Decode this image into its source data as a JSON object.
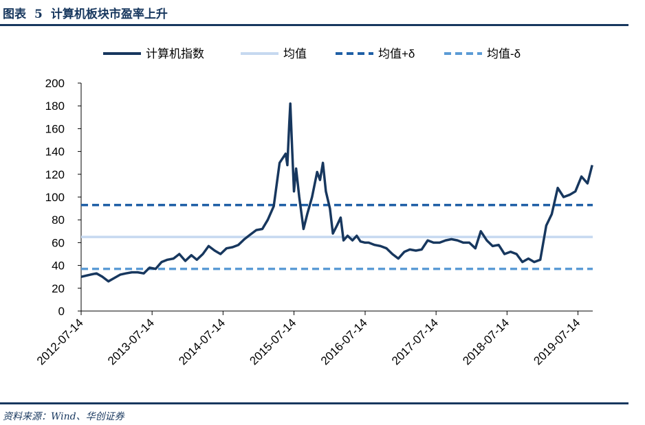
{
  "header": {
    "label": "图表",
    "number": "5",
    "title": "计算机板块市盈率上升"
  },
  "source": "资料来源：Wind、华创证券",
  "chart_data": {
    "type": "line",
    "x": [
      "2012-07-14",
      "2012-09-01",
      "2012-10-01",
      "2012-11-01",
      "2012-12-01",
      "2013-01-01",
      "2013-02-01",
      "2013-03-01",
      "2013-04-01",
      "2013-05-01",
      "2013-06-01",
      "2013-07-01",
      "2013-08-01",
      "2013-09-01",
      "2013-10-01",
      "2013-11-01",
      "2013-12-01",
      "2014-01-01",
      "2014-02-01",
      "2014-03-01",
      "2014-04-01",
      "2014-05-01",
      "2014-06-01",
      "2014-07-01",
      "2014-08-01",
      "2014-09-01",
      "2014-10-01",
      "2014-11-01",
      "2014-12-01",
      "2015-01-01",
      "2015-02-01",
      "2015-03-01",
      "2015-04-01",
      "2015-05-01",
      "2015-06-01",
      "2015-06-10",
      "2015-06-20",
      "2015-06-25",
      "2015-07-05",
      "2015-07-14",
      "2015-07-25",
      "2015-08-10",
      "2015-09-01",
      "2015-09-20",
      "2015-10-15",
      "2015-11-10",
      "2015-11-25",
      "2015-12-10",
      "2015-12-25",
      "2016-01-15",
      "2016-01-30",
      "2016-02-20",
      "2016-03-10",
      "2016-03-25",
      "2016-04-15",
      "2016-05-10",
      "2016-06-01",
      "2016-06-20",
      "2016-07-14",
      "2016-08-01",
      "2016-09-01",
      "2016-10-01",
      "2016-11-01",
      "2016-12-01",
      "2017-01-01",
      "2017-02-01",
      "2017-03-01",
      "2017-04-01",
      "2017-05-01",
      "2017-06-01",
      "2017-07-01",
      "2017-08-01",
      "2017-09-01",
      "2017-10-01",
      "2017-11-01",
      "2017-12-01",
      "2018-01-01",
      "2018-02-01",
      "2018-03-01",
      "2018-04-01",
      "2018-05-01",
      "2018-06-01",
      "2018-07-01",
      "2018-08-01",
      "2018-09-01",
      "2018-10-01",
      "2018-11-01",
      "2018-12-01",
      "2019-01-01",
      "2019-02-01",
      "2019-03-01",
      "2019-04-01",
      "2019-05-01",
      "2019-06-01",
      "2019-07-01",
      "2019-08-01",
      "2019-09-01",
      "2019-09-25"
    ],
    "series": [
      {
        "name": "计算机指数",
        "color": "#17375e",
        "values": [
          30,
          32,
          33,
          30,
          26,
          29,
          32,
          33,
          34,
          34,
          33,
          38,
          37,
          43,
          45,
          46,
          50,
          44,
          49,
          45,
          50,
          57,
          53,
          50,
          55,
          56,
          58,
          63,
          67,
          71,
          72,
          80,
          92,
          130,
          138,
          128,
          165,
          182,
          140,
          105,
          125,
          100,
          72,
          85,
          100,
          122,
          115,
          130,
          105,
          90,
          68,
          75,
          82,
          62,
          66,
          62,
          66,
          61,
          60,
          60,
          58,
          57,
          55,
          50,
          46,
          52,
          54,
          53,
          54,
          62,
          60,
          60,
          62,
          63,
          62,
          60,
          60,
          55,
          70,
          62,
          57,
          58,
          50,
          52,
          50,
          43,
          46,
          43,
          45,
          75,
          85,
          108,
          100,
          102,
          105,
          118,
          112,
          128
        ]
      }
    ],
    "reference_lines": [
      {
        "name": "均值",
        "color": "#c6d9f0",
        "value": 65,
        "dashed": false
      },
      {
        "name": "均值+δ",
        "color": "#1f5fa6",
        "value": 93,
        "dashed": true
      },
      {
        "name": "均值-δ",
        "color": "#5b9bd5",
        "value": 37,
        "dashed": true
      }
    ],
    "xlim": [
      "2012-07-14",
      "2019-09-28"
    ],
    "xticks": [
      "2012-07-14",
      "2013-07-14",
      "2014-07-14",
      "2015-07-14",
      "2016-07-14",
      "2017-07-14",
      "2018-07-14",
      "2019-07-14"
    ],
    "ylim": [
      0,
      200
    ],
    "yticks": [
      0,
      20,
      40,
      60,
      80,
      100,
      120,
      140,
      160,
      180,
      200
    ]
  }
}
